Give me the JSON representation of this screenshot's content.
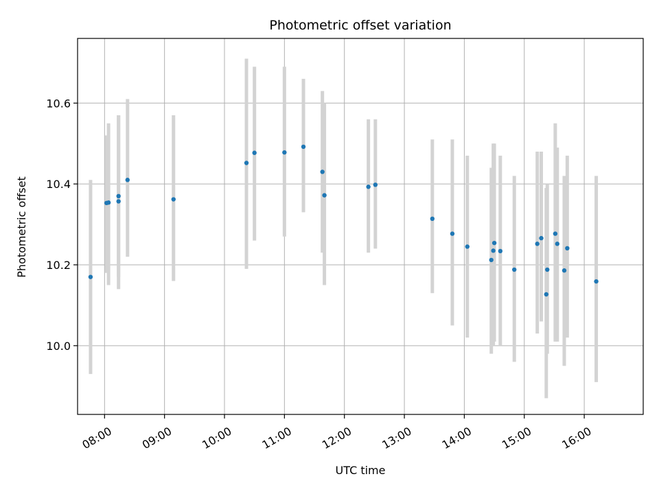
{
  "chart_data": {
    "type": "scatter",
    "title": "Photometric offset variation",
    "xlabel": "UTC time",
    "ylabel": "Photometric offset",
    "x_tick_labels": [
      "08:00",
      "09:00",
      "10:00",
      "11:00",
      "12:00",
      "13:00",
      "14:00",
      "15:00",
      "16:00"
    ],
    "y_tick_labels": [
      "10.0",
      "10.2",
      "10.4",
      "10.6"
    ],
    "grid": true,
    "xlim": [
      "07:33",
      "16:59"
    ],
    "ylim": [
      9.83,
      10.76
    ],
    "colors": {
      "points": "#1f77b4",
      "errorbars": "#d3d3d3",
      "grid": "#b0b0b0"
    },
    "series": [
      {
        "points": [
          {
            "x": "07:46",
            "y": 10.17,
            "ylow": 9.93,
            "yhigh": 10.41
          },
          {
            "x": "08:02",
            "y": 10.353,
            "ylow": 10.18,
            "yhigh": 10.52
          },
          {
            "x": "08:04",
            "y": 10.354,
            "ylow": 10.15,
            "yhigh": 10.55
          },
          {
            "x": "08:14",
            "y": 10.37,
            "ylow": 10.17,
            "yhigh": 10.57
          },
          {
            "x": "08:14",
            "y": 10.357,
            "ylow": 10.14,
            "yhigh": 10.57
          },
          {
            "x": "08:23",
            "y": 10.41,
            "ylow": 10.22,
            "yhigh": 10.61
          },
          {
            "x": "09:09",
            "y": 10.362,
            "ylow": 10.16,
            "yhigh": 10.57
          },
          {
            "x": "10:22",
            "y": 10.452,
            "ylow": 10.19,
            "yhigh": 10.71
          },
          {
            "x": "10:30",
            "y": 10.477,
            "ylow": 10.26,
            "yhigh": 10.69
          },
          {
            "x": "11:00",
            "y": 10.478,
            "ylow": 10.27,
            "yhigh": 10.69
          },
          {
            "x": "11:19",
            "y": 10.492,
            "ylow": 10.33,
            "yhigh": 10.66
          },
          {
            "x": "11:38",
            "y": 10.43,
            "ylow": 10.23,
            "yhigh": 10.63
          },
          {
            "x": "11:40",
            "y": 10.372,
            "ylow": 10.15,
            "yhigh": 10.6
          },
          {
            "x": "12:24",
            "y": 10.393,
            "ylow": 10.23,
            "yhigh": 10.56
          },
          {
            "x": "12:31",
            "y": 10.398,
            "ylow": 10.24,
            "yhigh": 10.56
          },
          {
            "x": "13:28",
            "y": 10.314,
            "ylow": 10.13,
            "yhigh": 10.51
          },
          {
            "x": "13:48",
            "y": 10.277,
            "ylow": 10.05,
            "yhigh": 10.51
          },
          {
            "x": "14:03",
            "y": 10.245,
            "ylow": 10.02,
            "yhigh": 10.47
          },
          {
            "x": "14:27",
            "y": 10.212,
            "ylow": 9.98,
            "yhigh": 10.44
          },
          {
            "x": "14:29",
            "y": 10.235,
            "ylow": 10.0,
            "yhigh": 10.5
          },
          {
            "x": "14:30",
            "y": 10.254,
            "ylow": 10.01,
            "yhigh": 10.5
          },
          {
            "x": "14:36",
            "y": 10.234,
            "ylow": 10.0,
            "yhigh": 10.47
          },
          {
            "x": "14:50",
            "y": 10.188,
            "ylow": 9.96,
            "yhigh": 10.42
          },
          {
            "x": "15:13",
            "y": 10.252,
            "ylow": 10.03,
            "yhigh": 10.48
          },
          {
            "x": "15:17",
            "y": 10.266,
            "ylow": 10.06,
            "yhigh": 10.48
          },
          {
            "x": "15:22",
            "y": 10.127,
            "ylow": 9.87,
            "yhigh": 10.39
          },
          {
            "x": "15:23",
            "y": 10.188,
            "ylow": 9.98,
            "yhigh": 10.4
          },
          {
            "x": "15:31",
            "y": 10.277,
            "ylow": 10.01,
            "yhigh": 10.55
          },
          {
            "x": "15:33",
            "y": 10.252,
            "ylow": 10.01,
            "yhigh": 10.49
          },
          {
            "x": "15:40",
            "y": 10.186,
            "ylow": 9.95,
            "yhigh": 10.42
          },
          {
            "x": "15:43",
            "y": 10.241,
            "ylow": 10.02,
            "yhigh": 10.47
          },
          {
            "x": "16:12",
            "y": 10.159,
            "ylow": 9.91,
            "yhigh": 10.42
          }
        ]
      }
    ]
  }
}
